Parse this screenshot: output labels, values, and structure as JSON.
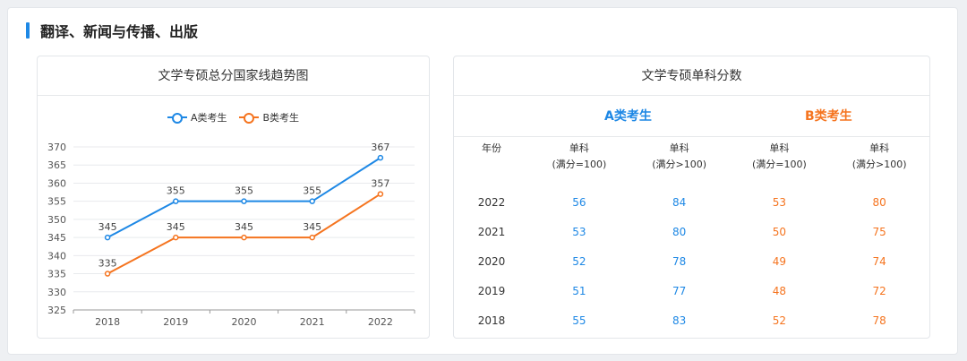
{
  "section": {
    "title": "翻译、新闻与传播、出版"
  },
  "chart_panel": {
    "title": "文学专硕总分国家线趋势图"
  },
  "table_panel": {
    "title": "文学专硕单科分数",
    "group_a": "A类考生",
    "group_b": "B类考生",
    "headers": [
      "年份",
      "单科",
      "(满分=100)",
      "单科",
      "(满分>100)",
      "单科",
      "(满分=100)",
      "单科",
      "(满分>100)"
    ],
    "rows": [
      [
        "2022",
        "56",
        "84",
        "53",
        "80"
      ],
      [
        "2021",
        "53",
        "80",
        "50",
        "75"
      ],
      [
        "2020",
        "52",
        "78",
        "49",
        "74"
      ],
      [
        "2019",
        "51",
        "77",
        "48",
        "72"
      ],
      [
        "2018",
        "55",
        "83",
        "52",
        "78"
      ]
    ]
  },
  "colors": {
    "series_a": "#1e88e5",
    "series_b": "#f5741f"
  },
  "chart_data": {
    "type": "line",
    "title": "文学专硕总分国家线趋势图",
    "xlabel": "",
    "ylabel": "",
    "categories": [
      "2018",
      "2019",
      "2020",
      "2021",
      "2022"
    ],
    "series": [
      {
        "name": "A类考生",
        "values": [
          345,
          355,
          355,
          355,
          367
        ]
      },
      {
        "name": "B类考生",
        "values": [
          335,
          345,
          345,
          345,
          357
        ]
      }
    ],
    "ylim": [
      325,
      370
    ],
    "yticks": [
      "325",
      "330",
      "335",
      "340",
      "345",
      "350",
      "355",
      "360",
      "365",
      "370"
    ],
    "grid": true,
    "legend": "top"
  }
}
